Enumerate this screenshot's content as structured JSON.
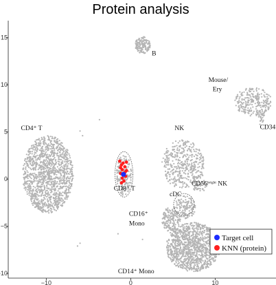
{
  "chart_data": {
    "type": "scatter",
    "title": "Protein analysis",
    "xlabel": "",
    "ylabel": "",
    "xlim": [
      -14.5,
      17.2
    ],
    "ylim": [
      -10.5,
      16.8
    ],
    "x_ticks": [
      "−10",
      "0",
      "10"
    ],
    "y_ticks": [
      "−10",
      "−5",
      "0",
      "5",
      "10",
      "15"
    ],
    "grid": false,
    "legend_position": "bottom-right",
    "colors": {
      "cells": "#b4b4b4",
      "target": "#1c2cff",
      "knn": "#ff1f1f",
      "outline": "#555555"
    },
    "clusters": [
      {
        "name": "B",
        "cx": 1.4,
        "cy": 14.2,
        "rx": 0.9,
        "ry": 0.9,
        "n": 150
      },
      {
        "name": "CD4_T",
        "cx": -9.8,
        "cy": 0.5,
        "rx": 3.0,
        "ry": 4.1,
        "n": 1400
      },
      {
        "name": "CD8_T",
        "cx": -0.8,
        "cy": 0.4,
        "rx": 0.9,
        "ry": 2.2,
        "n": 170
      },
      {
        "name": "NK",
        "cx": 6.2,
        "cy": 1.6,
        "rx": 2.5,
        "ry": 2.6,
        "n": 420
      },
      {
        "name": "CD56bright_NK",
        "cx": 8.2,
        "cy": -0.5,
        "rx": 0.9,
        "ry": 1.0,
        "n": 60
      },
      {
        "name": "cDC",
        "cx": 6.4,
        "cy": -3.0,
        "rx": 1.3,
        "ry": 1.2,
        "n": 140
      },
      {
        "name": "CD16_Mono",
        "cx": 4.8,
        "cy": -4.3,
        "rx": 1.1,
        "ry": 1.4,
        "n": 170
      },
      {
        "name": "CD14_Mono",
        "cx": 7.4,
        "cy": -7.2,
        "rx": 3.2,
        "ry": 2.6,
        "n": 1150
      },
      {
        "name": "Mouse_Ery",
        "cx": 14.5,
        "cy": 8.2,
        "rx": 2.2,
        "ry": 1.5,
        "n": 260
      },
      {
        "name": "CD34",
        "cx": 15.5,
        "cy": 6.7,
        "rx": 0.35,
        "ry": 0.7,
        "n": 30
      }
    ],
    "target_cell": {
      "x": -0.85,
      "y": 0.5
    },
    "knn_points": [
      [
        -1.1,
        1.5
      ],
      [
        -0.7,
        1.3
      ],
      [
        -1.0,
        1.0
      ],
      [
        -0.5,
        0.9
      ],
      [
        -1.2,
        0.6
      ],
      [
        -0.6,
        0.3
      ],
      [
        -1.0,
        0.1
      ],
      [
        -0.8,
        -0.2
      ],
      [
        -1.3,
        1.9
      ],
      [
        -0.5,
        1.8
      ],
      [
        -1.1,
        -0.4
      ],
      [
        -0.7,
        0.7
      ],
      [
        -1.2,
        1.2
      ],
      [
        -0.9,
        1.7
      ]
    ],
    "labels": [
      {
        "text": "B",
        "x": 2.5,
        "y": 13.1
      },
      {
        "text": "CD4⁺ T",
        "x": -13.0,
        "y": 5.2
      },
      {
        "text": "CD8⁺ T",
        "x": -2.0,
        "y": -1.2
      },
      {
        "text": "NK",
        "x": 5.2,
        "y": 5.2
      },
      {
        "text": "CD56",
        "sup": "bright",
        "tail": " NK",
        "x": 7.2,
        "y": -0.7
      },
      {
        "text": "cDC",
        "x": 4.6,
        "y": -1.8
      },
      {
        "text": "CD16⁺",
        "x": -0.2,
        "y": -3.9
      },
      {
        "text": "Mono",
        "x": -0.2,
        "y": -4.9
      },
      {
        "text": "CD14⁺ Mono",
        "x": -1.5,
        "y": -10.0
      },
      {
        "text": "Mouse/",
        "x": 9.2,
        "y": 10.3
      },
      {
        "text": "Ery",
        "x": 9.7,
        "y": 9.3
      },
      {
        "text": "CD34⁺",
        "x": 15.3,
        "y": 5.3
      }
    ],
    "legend": [
      {
        "label": "Target cell",
        "color": "#1c2cff"
      },
      {
        "label": "KNN (protein)",
        "color": "#ff1f1f"
      }
    ]
  }
}
